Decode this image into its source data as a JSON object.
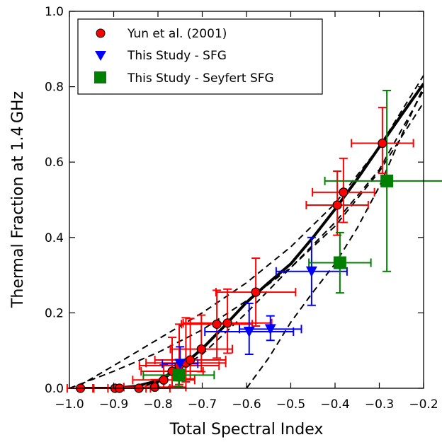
{
  "chart_data": {
    "type": "scatter",
    "xlabel": "Total Spectral Index",
    "ylabel": "Thermal Fraction at 1.4 GHz",
    "xlim": [
      -1.0,
      -0.2
    ],
    "ylim": [
      0.0,
      1.0
    ],
    "xticks": [
      -1.0,
      -0.9,
      -0.8,
      -0.7,
      -0.6,
      -0.5,
      -0.4,
      -0.3,
      -0.2
    ],
    "xtick_labels": [
      "−1.0",
      "−0.9",
      "−0.8",
      "−0.7",
      "−0.6",
      "−0.5",
      "−0.4",
      "−0.3",
      "−0.2"
    ],
    "yticks": [
      0.0,
      0.2,
      0.4,
      0.6,
      0.8,
      1.0
    ],
    "ytick_labels": [
      "0.0",
      "0.2",
      "0.4",
      "0.6",
      "0.8",
      "1.0"
    ],
    "grid": false,
    "legend_position": "top-left",
    "colors": {
      "yun": "#ff0000",
      "sfg": "#0000ff",
      "seyfert": "#008000",
      "model": "#000000"
    },
    "series": [
      {
        "name": "Yun et al. (2001)",
        "marker": "circle",
        "color": "#ff0000",
        "points": [
          {
            "x": -0.975,
            "y": 0.0,
            "xerr": 0.03,
            "yerr_lo": 0.0,
            "yerr_hi": 0.0
          },
          {
            "x": -0.897,
            "y": 0.0,
            "xerr": 0.08,
            "yerr_lo": 0.0,
            "yerr_hi": 0.0
          },
          {
            "x": -0.887,
            "y": 0.0,
            "xerr": 0.06,
            "yerr_lo": 0.0,
            "yerr_hi": 0.0
          },
          {
            "x": -0.843,
            "y": 0.0,
            "xerr": 0.07,
            "yerr_lo": 0.0,
            "yerr_hi": 0.0
          },
          {
            "x": -0.807,
            "y": 0.003,
            "xerr": 0.07,
            "yerr_lo": 0.0,
            "yerr_hi": 0.02
          },
          {
            "x": -0.787,
            "y": 0.022,
            "xerr": 0.07,
            "yerr_lo": 0.02,
            "yerr_hi": 0.04
          },
          {
            "x": -0.768,
            "y": 0.045,
            "xerr": 0.07,
            "yerr_lo": 0.04,
            "yerr_hi": 0.09
          },
          {
            "x": -0.752,
            "y": 0.06,
            "xerr": 0.09,
            "yerr_lo": 0.05,
            "yerr_hi": 0.11
          },
          {
            "x": -0.737,
            "y": 0.067,
            "xerr": 0.09,
            "yerr_lo": 0.05,
            "yerr_hi": 0.12
          },
          {
            "x": -0.727,
            "y": 0.075,
            "xerr": 0.08,
            "yerr_lo": 0.05,
            "yerr_hi": 0.11
          },
          {
            "x": -0.702,
            "y": 0.104,
            "xerr": 0.07,
            "yerr_lo": 0.06,
            "yerr_hi": 0.09
          },
          {
            "x": -0.667,
            "y": 0.17,
            "xerr": 0.08,
            "yerr_lo": 0.09,
            "yerr_hi": 0.09
          },
          {
            "x": -0.643,
            "y": 0.173,
            "xerr": 0.1,
            "yerr_lo": 0.08,
            "yerr_hi": 0.09
          },
          {
            "x": -0.579,
            "y": 0.255,
            "xerr": 0.09,
            "yerr_lo": 0.09,
            "yerr_hi": 0.09
          },
          {
            "x": -0.395,
            "y": 0.486,
            "xerr": 0.07,
            "yerr_lo": 0.08,
            "yerr_hi": 0.09
          },
          {
            "x": -0.381,
            "y": 0.52,
            "xerr": 0.07,
            "yerr_lo": 0.08,
            "yerr_hi": 0.09
          },
          {
            "x": -0.293,
            "y": 0.65,
            "xerr": 0.07,
            "yerr_lo": 0.08,
            "yerr_hi": 0.095
          }
        ]
      },
      {
        "name": "This Study - SFG",
        "marker": "triangle-down",
        "color": "#0000ff",
        "points": [
          {
            "x": -0.75,
            "y": 0.065,
            "xerr": 0.04,
            "yerr_lo": 0.045,
            "yerr_hi": 0.045
          },
          {
            "x": -0.594,
            "y": 0.15,
            "xerr": 0.1,
            "yerr_lo": 0.06,
            "yerr_hi": 0.075
          },
          {
            "x": -0.546,
            "y": 0.157,
            "xerr": 0.07,
            "yerr_lo": 0.03,
            "yerr_hi": 0.035
          },
          {
            "x": -0.453,
            "y": 0.31,
            "xerr": 0.08,
            "yerr_lo": 0.09,
            "yerr_hi": 0.09
          }
        ]
      },
      {
        "name": "This Study - Seyfert SFG",
        "marker": "square",
        "color": "#008000",
        "points": [
          {
            "x": -0.753,
            "y": 0.035,
            "xerr": 0.08,
            "yerr_lo": 0.03,
            "yerr_hi": 0.02
          },
          {
            "x": -0.389,
            "y": 0.333,
            "xerr": 0.07,
            "yerr_lo": 0.08,
            "yerr_hi": 0.08
          },
          {
            "x": -0.283,
            "y": 0.55,
            "xerr": 0.14,
            "yerr_lo": 0.24,
            "yerr_hi": 0.24
          }
        ]
      }
    ],
    "model_lines": [
      {
        "style": "solid",
        "points": [
          [
            -0.98,
            0.0
          ],
          [
            -0.9,
            0.0
          ],
          [
            -0.85,
            0.005
          ],
          [
            -0.8,
            0.02
          ],
          [
            -0.75,
            0.055
          ],
          [
            -0.7,
            0.105
          ],
          [
            -0.65,
            0.165
          ],
          [
            -0.6,
            0.228
          ],
          [
            -0.55,
            0.28
          ],
          [
            -0.5,
            0.33
          ],
          [
            -0.45,
            0.4
          ],
          [
            -0.4,
            0.475
          ],
          [
            -0.35,
            0.555
          ],
          [
            -0.3,
            0.64
          ],
          [
            -0.25,
            0.725
          ],
          [
            -0.2,
            0.808
          ]
        ]
      },
      {
        "style": "dashed",
        "points": [
          [
            -1.0,
            0.0
          ],
          [
            -0.9,
            0.045
          ],
          [
            -0.8,
            0.095
          ],
          [
            -0.7,
            0.155
          ],
          [
            -0.6,
            0.232
          ],
          [
            -0.5,
            0.32
          ],
          [
            -0.4,
            0.43
          ],
          [
            -0.3,
            0.575
          ],
          [
            -0.2,
            0.758
          ]
        ]
      },
      {
        "style": "dashed",
        "points": [
          [
            -0.98,
            0.005
          ],
          [
            -0.9,
            0.06
          ],
          [
            -0.8,
            0.13
          ],
          [
            -0.7,
            0.2
          ],
          [
            -0.6,
            0.28
          ],
          [
            -0.5,
            0.375
          ],
          [
            -0.4,
            0.49
          ],
          [
            -0.3,
            0.64
          ],
          [
            -0.2,
            0.83
          ]
        ]
      },
      {
        "style": "dashed",
        "points": [
          [
            -0.85,
            0.0
          ],
          [
            -0.8,
            0.015
          ],
          [
            -0.7,
            0.09
          ],
          [
            -0.6,
            0.2
          ],
          [
            -0.5,
            0.32
          ],
          [
            -0.4,
            0.44
          ],
          [
            -0.3,
            0.58
          ],
          [
            -0.2,
            0.79
          ]
        ]
      },
      {
        "style": "dashed",
        "points": [
          [
            -0.6,
            0.0
          ],
          [
            -0.55,
            0.08
          ],
          [
            -0.5,
            0.175
          ],
          [
            -0.45,
            0.255
          ],
          [
            -0.4,
            0.33
          ],
          [
            -0.35,
            0.425
          ],
          [
            -0.3,
            0.535
          ],
          [
            -0.25,
            0.67
          ],
          [
            -0.2,
            0.8
          ]
        ]
      }
    ]
  }
}
